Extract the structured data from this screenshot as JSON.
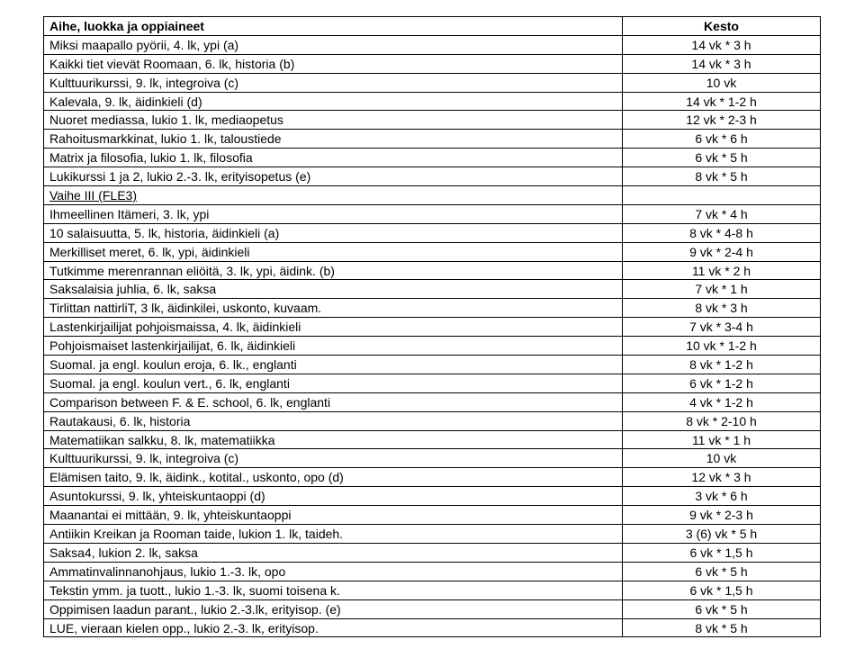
{
  "table": {
    "headers": {
      "aihe": "Aihe, luokka ja oppiaineet",
      "kesto": "Kesto"
    },
    "section2_label": "Vaihe III (FLE3)",
    "rows1": [
      {
        "aihe": "Miksi maapallo pyörii, 4. lk, ypi (a)",
        "kesto": "14 vk * 3 h"
      },
      {
        "aihe": "Kaikki tiet vievät Roomaan, 6. lk, historia (b)",
        "kesto": "14 vk * 3 h"
      },
      {
        "aihe": "Kulttuurikurssi, 9. lk, integroiva (c)",
        "kesto": "10 vk"
      },
      {
        "aihe": "Kalevala, 9. lk, äidinkieli (d)",
        "kesto": "14 vk * 1-2 h"
      },
      {
        "aihe": "Nuoret mediassa, lukio 1. lk, mediaopetus",
        "kesto": "12 vk * 2-3 h"
      },
      {
        "aihe": "Rahoitusmarkkinat, lukio 1. lk, taloustiede",
        "kesto": "6 vk * 6 h"
      },
      {
        "aihe": "Matrix ja filosofia, lukio 1. lk, filosofia",
        "kesto": "6 vk * 5 h"
      },
      {
        "aihe": "Lukikurssi 1 ja 2, lukio 2.-3. lk, erityisopetus (e)",
        "kesto": "8 vk * 5 h"
      }
    ],
    "rows2": [
      {
        "aihe": "Ihmeellinen Itämeri, 3. lk, ypi",
        "kesto": "7 vk * 4 h"
      },
      {
        "aihe": "10 salaisuutta, 5. lk, historia, äidinkieli (a)",
        "kesto": "8 vk * 4-8 h"
      },
      {
        "aihe": "Merkilliset meret, 6. lk, ypi, äidinkieli",
        "kesto": "9 vk * 2-4 h"
      },
      {
        "aihe": "Tutkimme merenrannan eliöitä, 3. lk, ypi, äidink. (b)",
        "kesto": "11 vk * 2 h"
      },
      {
        "aihe": "Saksalaisia juhlia, 6. lk, saksa",
        "kesto": "7 vk * 1 h"
      },
      {
        "aihe": "Tirlittan nattirliT, 3 lk, äidinkilei, uskonto, kuvaam.",
        "kesto": "8 vk * 3 h"
      },
      {
        "aihe": "Lastenkirjailijat pohjoismaissa, 4. lk, äidinkieli",
        "kesto": "7 vk * 3-4 h"
      },
      {
        "aihe": "Pohjoismaiset lastenkirjailijat, 6. lk, äidinkieli",
        "kesto": "10 vk * 1-2 h"
      },
      {
        "aihe": "Suomal. ja engl. koulun eroja, 6. lk., englanti",
        "kesto": "8 vk * 1-2 h"
      },
      {
        "aihe": "Suomal. ja engl. koulun vert., 6. lk, englanti",
        "kesto": "6 vk * 1-2 h"
      },
      {
        "aihe": "Comparison between F. & E. school, 6. lk, englanti",
        "kesto": "4 vk * 1-2 h"
      },
      {
        "aihe": "Rautakausi, 6. lk, historia",
        "kesto": "8 vk * 2-10 h"
      },
      {
        "aihe": "Matematiikan salkku, 8. lk, matematiikka",
        "kesto": "11 vk * 1 h"
      },
      {
        "aihe": "Kulttuurikurssi, 9. lk, integroiva (c)",
        "kesto": "10 vk"
      },
      {
        "aihe": "Elämisen taito, 9. lk, äidink., kotital., uskonto, opo (d)",
        "kesto": "12 vk * 3 h"
      },
      {
        "aihe": "Asuntokurssi, 9. lk, yhteiskuntaoppi (d)",
        "kesto": "3 vk * 6 h"
      },
      {
        "aihe": "Maanantai ei mittään, 9. lk, yhteiskuntaoppi",
        "kesto": "9 vk * 2-3 h"
      },
      {
        "aihe": "Antiikin Kreikan ja Rooman taide, lukion 1. lk, taideh.",
        "kesto": "3 (6) vk * 5 h"
      },
      {
        "aihe": "Saksa4, lukion 2. lk, saksa",
        "kesto": "6 vk * 1,5 h"
      },
      {
        "aihe": "Ammatinvalinnanohjaus, lukio 1.-3. lk, opo",
        "kesto": "6 vk * 5 h"
      },
      {
        "aihe": "Tekstin ymm. ja tuott., lukio 1.-3. lk, suomi toisena k.",
        "kesto": "6 vk * 1,5 h"
      },
      {
        "aihe": "Oppimisen laadun parant., lukio 2.-3.lk, erityisop. (e)",
        "kesto": "6 vk * 5 h"
      },
      {
        "aihe": "LUE, vieraan kielen opp., lukio 2.-3. lk, erityisop.",
        "kesto": "8 vk * 5 h"
      }
    ]
  }
}
